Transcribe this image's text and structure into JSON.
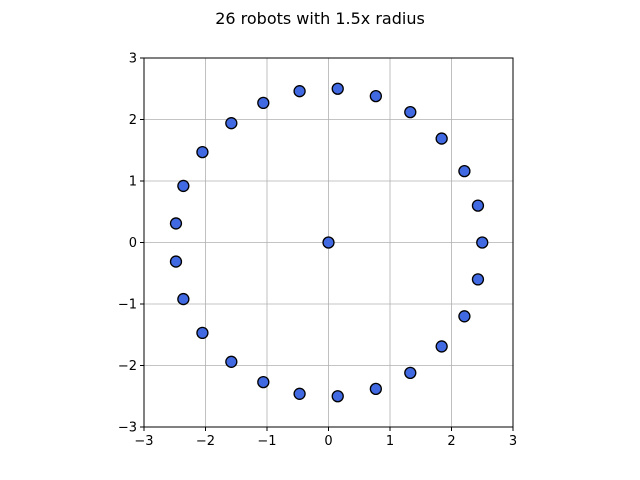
{
  "chart_data": {
    "type": "scatter",
    "title": "26 robots with 1.5x radius",
    "xlabel": "",
    "ylabel": "",
    "xlim": [
      -3,
      3
    ],
    "ylim": [
      -3,
      3
    ],
    "xticks": [
      -3,
      -2,
      -1,
      0,
      1,
      2,
      3
    ],
    "yticks": [
      -3,
      -2,
      -1,
      0,
      1,
      2,
      3
    ],
    "xtick_labels": [
      "−3",
      "−2",
      "−1",
      "0",
      "1",
      "2",
      "3"
    ],
    "ytick_labels": [
      "−3",
      "−2",
      "−1",
      "0",
      "1",
      "2",
      "3"
    ],
    "grid": true,
    "marker_color": "#4169e1",
    "marker_edge_color": "#000000",
    "grid_color": "#b0b0b0",
    "points": [
      {
        "x": 0.0,
        "y": 0.0
      },
      {
        "x": 2.5,
        "y": 0.0
      },
      {
        "x": 2.43,
        "y": 0.6
      },
      {
        "x": 2.21,
        "y": 1.16
      },
      {
        "x": 1.84,
        "y": 1.69
      },
      {
        "x": 1.33,
        "y": 2.12
      },
      {
        "x": 0.77,
        "y": 2.38
      },
      {
        "x": 0.15,
        "y": 2.5
      },
      {
        "x": -0.47,
        "y": 2.46
      },
      {
        "x": -1.06,
        "y": 2.27
      },
      {
        "x": -1.58,
        "y": 1.94
      },
      {
        "x": -2.05,
        "y": 1.47
      },
      {
        "x": -2.36,
        "y": 0.92
      },
      {
        "x": -2.48,
        "y": 0.31
      },
      {
        "x": -2.48,
        "y": -0.31
      },
      {
        "x": -2.36,
        "y": -0.92
      },
      {
        "x": -2.05,
        "y": -1.47
      },
      {
        "x": -1.58,
        "y": -1.94
      },
      {
        "x": -1.06,
        "y": -2.27
      },
      {
        "x": -0.47,
        "y": -2.46
      },
      {
        "x": 0.15,
        "y": -2.5
      },
      {
        "x": 0.77,
        "y": -2.38
      },
      {
        "x": 1.33,
        "y": -2.12
      },
      {
        "x": 1.84,
        "y": -1.69
      },
      {
        "x": 2.21,
        "y": -1.2
      },
      {
        "x": 2.43,
        "y": -0.6
      }
    ]
  }
}
